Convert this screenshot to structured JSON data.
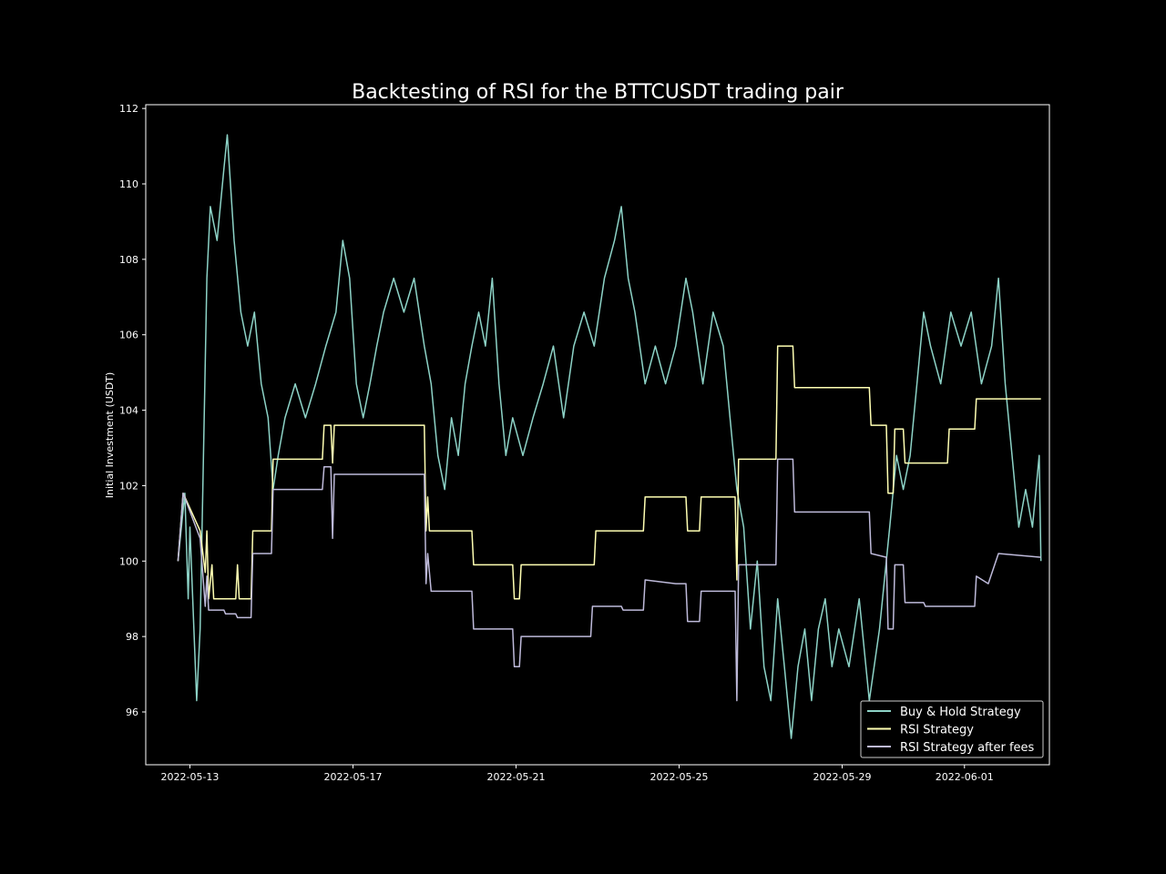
{
  "chart_data": {
    "type": "line",
    "title": "Backtesting of RSI for the BTTCUSDT trading pair",
    "xlabel": "",
    "ylabel": "Initial Investment (USDT)",
    "x_range": [
      "2022-05-11T22:00",
      "2022-06-03T02:00"
    ],
    "ylim": [
      94.6,
      112.1
    ],
    "x_ticks": [
      "2022-05-13",
      "2022-05-17",
      "2022-05-21",
      "2022-05-25",
      "2022-05-29",
      "2022-06-01"
    ],
    "y_ticks": [
      "96",
      "98",
      "100",
      "102",
      "104",
      "106",
      "108",
      "110",
      "112"
    ],
    "grid": false,
    "legend_position": "lower right",
    "background": "#000000",
    "series": [
      {
        "name": "Buy & Hold Strategy",
        "color": "#8dd3c7",
        "points": [
          [
            "2022-05-12T17:00",
            100.0
          ],
          [
            "2022-05-12T21:00",
            101.8
          ],
          [
            "2022-05-12T23:00",
            99.0
          ],
          [
            "2022-05-13T00:00",
            100.9
          ],
          [
            "2022-05-13T04:00",
            96.3
          ],
          [
            "2022-05-13T06:00",
            98.2
          ],
          [
            "2022-05-13T10:00",
            107.5
          ],
          [
            "2022-05-13T12:00",
            109.4
          ],
          [
            "2022-05-13T16:00",
            108.5
          ],
          [
            "2022-05-13T20:00",
            110.4
          ],
          [
            "2022-05-13T22:00",
            111.3
          ],
          [
            "2022-05-14T02:00",
            108.5
          ],
          [
            "2022-05-14T06:00",
            106.6
          ],
          [
            "2022-05-14T10:00",
            105.7
          ],
          [
            "2022-05-14T14:00",
            106.6
          ],
          [
            "2022-05-14T18:00",
            104.7
          ],
          [
            "2022-05-14T22:00",
            103.8
          ],
          [
            "2022-05-15T01:00",
            101.9
          ],
          [
            "2022-05-15T04:00",
            102.8
          ],
          [
            "2022-05-15T08:00",
            103.8
          ],
          [
            "2022-05-15T14:00",
            104.7
          ],
          [
            "2022-05-15T20:00",
            103.8
          ],
          [
            "2022-05-16T02:00",
            104.7
          ],
          [
            "2022-05-16T08:00",
            105.7
          ],
          [
            "2022-05-16T14:00",
            106.6
          ],
          [
            "2022-05-16T18:00",
            108.5
          ],
          [
            "2022-05-16T22:00",
            107.5
          ],
          [
            "2022-05-17T02:00",
            104.7
          ],
          [
            "2022-05-17T06:00",
            103.8
          ],
          [
            "2022-05-17T10:00",
            104.7
          ],
          [
            "2022-05-17T14:00",
            105.7
          ],
          [
            "2022-05-17T18:00",
            106.6
          ],
          [
            "2022-05-18T00:00",
            107.5
          ],
          [
            "2022-05-18T06:00",
            106.6
          ],
          [
            "2022-05-18T12:00",
            107.5
          ],
          [
            "2022-05-18T18:00",
            105.7
          ],
          [
            "2022-05-18T22:00",
            104.7
          ],
          [
            "2022-05-19T02:00",
            102.8
          ],
          [
            "2022-05-19T06:00",
            101.9
          ],
          [
            "2022-05-19T10:00",
            103.8
          ],
          [
            "2022-05-19T14:00",
            102.8
          ],
          [
            "2022-05-19T18:00",
            104.7
          ],
          [
            "2022-05-19T22:00",
            105.7
          ],
          [
            "2022-05-20T02:00",
            106.6
          ],
          [
            "2022-05-20T06:00",
            105.7
          ],
          [
            "2022-05-20T10:00",
            107.5
          ],
          [
            "2022-05-20T14:00",
            104.7
          ],
          [
            "2022-05-20T18:00",
            102.8
          ],
          [
            "2022-05-20T22:00",
            103.8
          ],
          [
            "2022-05-21T04:00",
            102.8
          ],
          [
            "2022-05-21T10:00",
            103.8
          ],
          [
            "2022-05-21T16:00",
            104.7
          ],
          [
            "2022-05-21T22:00",
            105.7
          ],
          [
            "2022-05-22T04:00",
            103.8
          ],
          [
            "2022-05-22T10:00",
            105.7
          ],
          [
            "2022-05-22T16:00",
            106.6
          ],
          [
            "2022-05-22T22:00",
            105.7
          ],
          [
            "2022-05-23T04:00",
            107.5
          ],
          [
            "2022-05-23T10:00",
            108.5
          ],
          [
            "2022-05-23T14:00",
            109.4
          ],
          [
            "2022-05-23T18:00",
            107.5
          ],
          [
            "2022-05-23T22:00",
            106.6
          ],
          [
            "2022-05-24T04:00",
            104.7
          ],
          [
            "2022-05-24T10:00",
            105.7
          ],
          [
            "2022-05-24T16:00",
            104.7
          ],
          [
            "2022-05-24T22:00",
            105.7
          ],
          [
            "2022-05-25T04:00",
            107.5
          ],
          [
            "2022-05-25T08:00",
            106.6
          ],
          [
            "2022-05-25T14:00",
            104.7
          ],
          [
            "2022-05-25T20:00",
            106.6
          ],
          [
            "2022-05-26T02:00",
            105.7
          ],
          [
            "2022-05-26T06:00",
            103.8
          ],
          [
            "2022-05-26T10:00",
            101.9
          ],
          [
            "2022-05-26T14:00",
            100.9
          ],
          [
            "2022-05-26T18:00",
            98.2
          ],
          [
            "2022-05-26T22:00",
            100.0
          ],
          [
            "2022-05-27T02:00",
            97.2
          ],
          [
            "2022-05-27T06:00",
            96.3
          ],
          [
            "2022-05-27T10:00",
            99.0
          ],
          [
            "2022-05-27T14:00",
            97.2
          ],
          [
            "2022-05-27T18:00",
            95.3
          ],
          [
            "2022-05-27T22:00",
            97.2
          ],
          [
            "2022-05-28T02:00",
            98.2
          ],
          [
            "2022-05-28T06:00",
            96.3
          ],
          [
            "2022-05-28T10:00",
            98.2
          ],
          [
            "2022-05-28T14:00",
            99.0
          ],
          [
            "2022-05-28T18:00",
            97.2
          ],
          [
            "2022-05-28T22:00",
            98.2
          ],
          [
            "2022-05-29T04:00",
            97.2
          ],
          [
            "2022-05-29T10:00",
            99.0
          ],
          [
            "2022-05-29T16:00",
            96.3
          ],
          [
            "2022-05-29T22:00",
            98.2
          ],
          [
            "2022-05-30T04:00",
            100.9
          ],
          [
            "2022-05-30T08:00",
            102.8
          ],
          [
            "2022-05-30T12:00",
            101.9
          ],
          [
            "2022-05-30T16:00",
            102.8
          ],
          [
            "2022-05-30T20:00",
            104.7
          ],
          [
            "2022-05-31T00:00",
            106.6
          ],
          [
            "2022-05-31T04:00",
            105.7
          ],
          [
            "2022-05-31T10:00",
            104.7
          ],
          [
            "2022-05-31T16:00",
            106.6
          ],
          [
            "2022-05-31T22:00",
            105.7
          ],
          [
            "2022-06-01T04:00",
            106.6
          ],
          [
            "2022-06-01T10:00",
            104.7
          ],
          [
            "2022-06-01T16:00",
            105.7
          ],
          [
            "2022-06-01T20:00",
            107.5
          ],
          [
            "2022-06-02T00:00",
            104.7
          ],
          [
            "2022-06-02T04:00",
            102.8
          ],
          [
            "2022-06-02T08:00",
            100.9
          ],
          [
            "2022-06-02T12:00",
            101.9
          ],
          [
            "2022-06-02T16:00",
            100.9
          ],
          [
            "2022-06-02T20:00",
            102.8
          ],
          [
            "2022-06-02T21:00",
            100.0
          ]
        ]
      },
      {
        "name": "RSI Strategy",
        "color": "#ffffb3",
        "points": [
          [
            "2022-05-12T17:00",
            100.0
          ],
          [
            "2022-05-12T20:00",
            101.8
          ],
          [
            "2022-05-13T06:00",
            100.8
          ],
          [
            "2022-05-13T09:00",
            99.7
          ],
          [
            "2022-05-13T10:00",
            100.8
          ],
          [
            "2022-05-13T11:00",
            99.0
          ],
          [
            "2022-05-13T13:00",
            99.9
          ],
          [
            "2022-05-13T14:00",
            99.0
          ],
          [
            "2022-05-14T03:00",
            99.0
          ],
          [
            "2022-05-14T04:00",
            99.9
          ],
          [
            "2022-05-14T05:00",
            99.0
          ],
          [
            "2022-05-14T12:00",
            99.0
          ],
          [
            "2022-05-14T13:00",
            100.8
          ],
          [
            "2022-05-15T00:00",
            100.8
          ],
          [
            "2022-05-15T01:00",
            102.7
          ],
          [
            "2022-05-16T06:00",
            102.7
          ],
          [
            "2022-05-16T07:00",
            103.6
          ],
          [
            "2022-05-16T11:00",
            103.6
          ],
          [
            "2022-05-16T12:00",
            102.6
          ],
          [
            "2022-05-16T13:00",
            103.6
          ],
          [
            "2022-05-18T18:00",
            103.6
          ],
          [
            "2022-05-18T19:00",
            100.8
          ],
          [
            "2022-05-18T20:00",
            101.7
          ],
          [
            "2022-05-18T21:00",
            100.8
          ],
          [
            "2022-05-19T22:00",
            100.8
          ],
          [
            "2022-05-19T23:00",
            99.9
          ],
          [
            "2022-05-20T22:00",
            99.9
          ],
          [
            "2022-05-20T23:00",
            99.0
          ],
          [
            "2022-05-21T02:00",
            99.0
          ],
          [
            "2022-05-21T03:00",
            99.9
          ],
          [
            "2022-05-22T22:00",
            99.9
          ],
          [
            "2022-05-22T23:00",
            100.8
          ],
          [
            "2022-05-24T03:00",
            100.8
          ],
          [
            "2022-05-24T04:00",
            101.7
          ],
          [
            "2022-05-25T04:00",
            101.7
          ],
          [
            "2022-05-25T05:00",
            100.8
          ],
          [
            "2022-05-25T12:00",
            100.8
          ],
          [
            "2022-05-25T13:00",
            101.7
          ],
          [
            "2022-05-26T09:00",
            101.7
          ],
          [
            "2022-05-26T10:00",
            99.5
          ],
          [
            "2022-05-26T11:00",
            102.7
          ],
          [
            "2022-05-27T09:00",
            102.7
          ],
          [
            "2022-05-27T10:00",
            105.7
          ],
          [
            "2022-05-27T19:00",
            105.7
          ],
          [
            "2022-05-27T20:00",
            104.6
          ],
          [
            "2022-05-29T16:00",
            104.6
          ],
          [
            "2022-05-29T17:00",
            103.6
          ],
          [
            "2022-05-30T02:00",
            103.6
          ],
          [
            "2022-05-30T03:00",
            101.8
          ],
          [
            "2022-05-30T06:00",
            101.8
          ],
          [
            "2022-05-30T07:00",
            103.5
          ],
          [
            "2022-05-30T12:00",
            103.5
          ],
          [
            "2022-05-30T13:00",
            102.6
          ],
          [
            "2022-05-31T14:00",
            102.6
          ],
          [
            "2022-05-31T15:00",
            103.5
          ],
          [
            "2022-06-01T06:00",
            103.5
          ],
          [
            "2022-06-01T07:00",
            104.3
          ],
          [
            "2022-06-02T21:00",
            104.3
          ]
        ]
      },
      {
        "name": "RSI Strategy after fees",
        "color": "#bebada",
        "points": [
          [
            "2022-05-12T17:00",
            100.0
          ],
          [
            "2022-05-12T20:00",
            101.8
          ],
          [
            "2022-05-13T06:00",
            100.6
          ],
          [
            "2022-05-13T09:00",
            98.8
          ],
          [
            "2022-05-13T10:00",
            99.6
          ],
          [
            "2022-05-13T11:00",
            98.7
          ],
          [
            "2022-05-13T20:00",
            98.7
          ],
          [
            "2022-05-13T21:00",
            98.6
          ],
          [
            "2022-05-14T03:00",
            98.6
          ],
          [
            "2022-05-14T04:00",
            98.5
          ],
          [
            "2022-05-14T12:00",
            98.5
          ],
          [
            "2022-05-14T13:00",
            100.2
          ],
          [
            "2022-05-15T00:00",
            100.2
          ],
          [
            "2022-05-15T01:00",
            101.9
          ],
          [
            "2022-05-16T06:00",
            101.9
          ],
          [
            "2022-05-16T07:00",
            102.5
          ],
          [
            "2022-05-16T11:00",
            102.5
          ],
          [
            "2022-05-16T12:00",
            100.6
          ],
          [
            "2022-05-16T13:00",
            102.3
          ],
          [
            "2022-05-18T18:00",
            102.3
          ],
          [
            "2022-05-18T19:00",
            99.4
          ],
          [
            "2022-05-18T20:00",
            100.2
          ],
          [
            "2022-05-18T22:00",
            99.2
          ],
          [
            "2022-05-19T22:00",
            99.2
          ],
          [
            "2022-05-19T23:00",
            98.2
          ],
          [
            "2022-05-20T22:00",
            98.2
          ],
          [
            "2022-05-20T23:00",
            97.2
          ],
          [
            "2022-05-21T02:00",
            97.2
          ],
          [
            "2022-05-21T03:00",
            98.0
          ],
          [
            "2022-05-22T20:00",
            98.0
          ],
          [
            "2022-05-22T21:00",
            98.8
          ],
          [
            "2022-05-23T14:00",
            98.8
          ],
          [
            "2022-05-23T15:00",
            98.7
          ],
          [
            "2022-05-24T03:00",
            98.7
          ],
          [
            "2022-05-24T04:00",
            99.5
          ],
          [
            "2022-05-24T22:00",
            99.4
          ],
          [
            "2022-05-25T04:00",
            99.4
          ],
          [
            "2022-05-25T05:00",
            98.4
          ],
          [
            "2022-05-25T12:00",
            98.4
          ],
          [
            "2022-05-25T13:00",
            99.2
          ],
          [
            "2022-05-26T09:00",
            99.2
          ],
          [
            "2022-05-26T10:00",
            96.3
          ],
          [
            "2022-05-26T11:00",
            99.9
          ],
          [
            "2022-05-27T09:00",
            99.9
          ],
          [
            "2022-05-27T10:00",
            102.7
          ],
          [
            "2022-05-27T19:00",
            102.7
          ],
          [
            "2022-05-27T20:00",
            101.3
          ],
          [
            "2022-05-29T16:00",
            101.3
          ],
          [
            "2022-05-29T17:00",
            100.2
          ],
          [
            "2022-05-30T02:00",
            100.1
          ],
          [
            "2022-05-30T03:00",
            98.2
          ],
          [
            "2022-05-30T06:00",
            98.2
          ],
          [
            "2022-05-30T07:00",
            99.9
          ],
          [
            "2022-05-30T12:00",
            99.9
          ],
          [
            "2022-05-30T13:00",
            98.9
          ],
          [
            "2022-05-31T00:00",
            98.9
          ],
          [
            "2022-05-31T01:00",
            98.8
          ],
          [
            "2022-06-01T06:00",
            98.8
          ],
          [
            "2022-06-01T07:00",
            99.6
          ],
          [
            "2022-06-01T14:00",
            99.4
          ],
          [
            "2022-06-01T20:00",
            100.2
          ],
          [
            "2022-06-02T21:00",
            100.1
          ]
        ]
      }
    ]
  }
}
